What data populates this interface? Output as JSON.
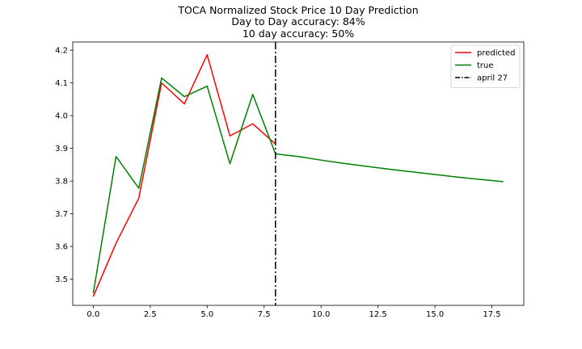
{
  "chart_data": {
    "type": "line",
    "title_lines": [
      "TOCA Normalized Stock Price 10 Day Prediction",
      "Day to Day accuracy: 84%",
      "10 day accuracy: 50%"
    ],
    "xlabel": "",
    "ylabel": "",
    "xlim": [
      -0.9,
      18.9
    ],
    "ylim": [
      3.42,
      4.225
    ],
    "xticks": [
      0.0,
      2.5,
      5.0,
      7.5,
      10.0,
      12.5,
      15.0,
      17.5
    ],
    "xtick_labels": [
      "0.0",
      "2.5",
      "5.0",
      "7.5",
      "10.0",
      "12.5",
      "15.0",
      "17.5"
    ],
    "yticks": [
      3.5,
      3.6,
      3.7,
      3.8,
      3.9,
      4.0,
      4.1,
      4.2
    ],
    "ytick_labels": [
      "3.5",
      "3.6",
      "3.7",
      "3.8",
      "3.9",
      "4.0",
      "4.1",
      "4.2"
    ],
    "grid": false,
    "legend_position": "top-right",
    "series": [
      {
        "name": "predicted",
        "color": "#ff0000",
        "x": [
          0,
          1,
          2,
          3,
          4,
          5,
          6,
          7,
          8
        ],
        "y": [
          3.447,
          3.61,
          3.748,
          4.1,
          4.036,
          4.186,
          3.938,
          3.975,
          3.913
        ]
      },
      {
        "name": "true",
        "color": "#008000",
        "x": [
          0,
          1,
          2,
          3,
          4,
          5,
          6,
          7,
          8,
          9,
          10,
          11,
          12,
          13,
          14,
          15,
          16,
          17,
          18
        ],
        "y": [
          3.457,
          3.875,
          3.778,
          4.115,
          4.058,
          4.09,
          3.853,
          4.065,
          3.883,
          3.875,
          3.864,
          3.854,
          3.845,
          3.836,
          3.828,
          3.82,
          3.812,
          3.805,
          3.798
        ]
      }
    ],
    "vline": {
      "name": "april 27",
      "x": 8,
      "color": "#000000",
      "style": "dashdot"
    }
  }
}
